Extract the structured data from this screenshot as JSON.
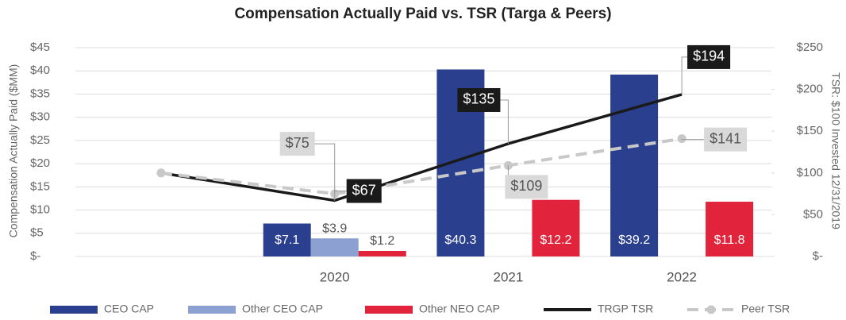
{
  "chart_data": {
    "type": "bar",
    "title": "Compensation Actually Paid vs. TSR (Targa & Peers)",
    "y_label": "Compensation Actually Paid ($MM)",
    "y2_label": "TSR: $100 Invested 12/31/2019",
    "categories": [
      null,
      "2020",
      "2021",
      "2022"
    ],
    "series": [
      {
        "name": "CEO CAP",
        "type": "bar",
        "color": "#2b3f8f",
        "values": [
          null,
          7.1,
          40.3,
          39.2
        ],
        "value_labels": [
          null,
          "$7.1",
          "$40.3",
          "$39.2"
        ]
      },
      {
        "name": "Other CEO CAP",
        "type": "bar",
        "color": "#8da0d2",
        "values": [
          null,
          3.9,
          null,
          null
        ],
        "value_labels": [
          null,
          "$3.9",
          null,
          null
        ]
      },
      {
        "name": "Other NEO CAP",
        "type": "bar",
        "color": "#e1233b",
        "values": [
          null,
          1.2,
          12.2,
          11.8
        ],
        "value_labels": [
          null,
          "$1.2",
          "$12.2",
          "$11.8"
        ]
      },
      {
        "name": "TRGP TSR",
        "type": "line",
        "axis": "y2",
        "color": "#1a1a1a",
        "values": [
          100,
          67,
          135,
          194
        ],
        "value_labels": [
          null,
          "$67",
          "$135",
          "$194"
        ]
      },
      {
        "name": "Peer TSR",
        "type": "line",
        "axis": "y2",
        "dashed": true,
        "color": "#c8c8c8",
        "values": [
          100,
          75,
          109,
          141
        ],
        "value_labels": [
          null,
          "$75",
          "$109",
          "$141"
        ]
      }
    ],
    "ylim": [
      0,
      45
    ],
    "yticks": [
      {
        "value": 0,
        "label": "$-"
      },
      {
        "value": 5,
        "label": "$5"
      },
      {
        "value": 10,
        "label": "$10"
      },
      {
        "value": 15,
        "label": "$15"
      },
      {
        "value": 20,
        "label": "$20"
      },
      {
        "value": 25,
        "label": "$25"
      },
      {
        "value": 30,
        "label": "$30"
      },
      {
        "value": 35,
        "label": "$35"
      },
      {
        "value": 40,
        "label": "$40"
      },
      {
        "value": 45,
        "label": "$45"
      }
    ],
    "y2lim": [
      0,
      250
    ],
    "y2ticks": [
      {
        "value": 0,
        "label": "$-"
      },
      {
        "value": 50,
        "label": "$50"
      },
      {
        "value": 100,
        "label": "$100"
      },
      {
        "value": 150,
        "label": "$150"
      },
      {
        "value": 200,
        "label": "$200"
      },
      {
        "value": 250,
        "label": "$250"
      }
    ],
    "grid": true,
    "legend": "bottom"
  }
}
